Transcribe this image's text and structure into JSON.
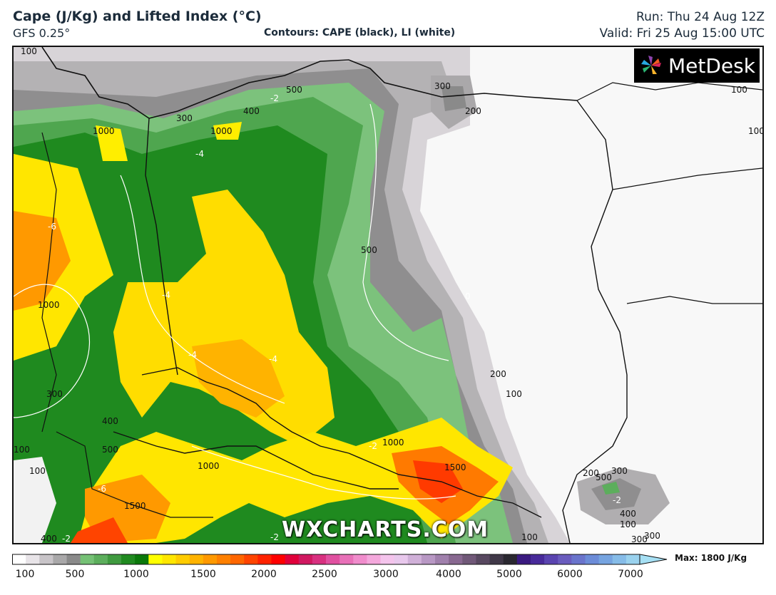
{
  "header": {
    "title": "Cape (J/Kg) and Lifted Index (°C)",
    "model": "GFS 0.25°",
    "contours": "Contours: CAPE (black), LI (white)",
    "run": "Run: Thu 24 Aug 12Z",
    "valid": "Valid: Fri 25 Aug 15:00 UTC"
  },
  "logo": {
    "text": "MetDesk",
    "icon": "metdesk-pinwheel-icon"
  },
  "watermark": "WXCHARTS.COM",
  "colorbar": {
    "max_label": "Max: 1800 J/Kg",
    "ticks": [
      "100",
      "500",
      "1000",
      "1500",
      "2000",
      "2500",
      "3000",
      "4000",
      "5000",
      "6000",
      "7000"
    ],
    "colors": [
      "#ffffff",
      "#e8e4e8",
      "#c8c4c8",
      "#a9a8a9",
      "#8a8a8a",
      "#75c175",
      "#5cae5c",
      "#3f9a3f",
      "#208a20",
      "#0a780a",
      "#ffff00",
      "#ffe600",
      "#ffcc00",
      "#ffb300",
      "#ff9900",
      "#ff8000",
      "#ff6600",
      "#ff4400",
      "#ff2200",
      "#ff0000",
      "#e0003a",
      "#d01860",
      "#d83080",
      "#e050a0",
      "#e870b8",
      "#f08ccc",
      "#f4a8dc",
      "#f4c4ec",
      "#e8c8ec",
      "#d0b0d8",
      "#b898c4",
      "#a080ac",
      "#886890",
      "#705878",
      "#584860",
      "#403848",
      "#2a2830",
      "#3a1a80",
      "#482a9a",
      "#5a44b0",
      "#6a5cbe",
      "#6a74cc",
      "#6c8cd8",
      "#76a4e0",
      "#86bce8",
      "#9ad2ee"
    ]
  },
  "map_labels": {
    "cape": [
      "100",
      "500",
      "300",
      "200",
      "100",
      "100",
      "400",
      "300",
      "1000",
      "1000",
      "500",
      "1000",
      "300",
      "400",
      "500",
      "100",
      "1000",
      "1000",
      "1500",
      "1500",
      "200",
      "100",
      "200",
      "300",
      "500",
      "400",
      "100",
      "300",
      "300",
      "100",
      "400",
      "100"
    ],
    "li": [
      "-2",
      "-4",
      "-6",
      "-4",
      "-4",
      "-4",
      "-6",
      "-2",
      "-2",
      "-2",
      "0",
      "-2"
    ]
  }
}
